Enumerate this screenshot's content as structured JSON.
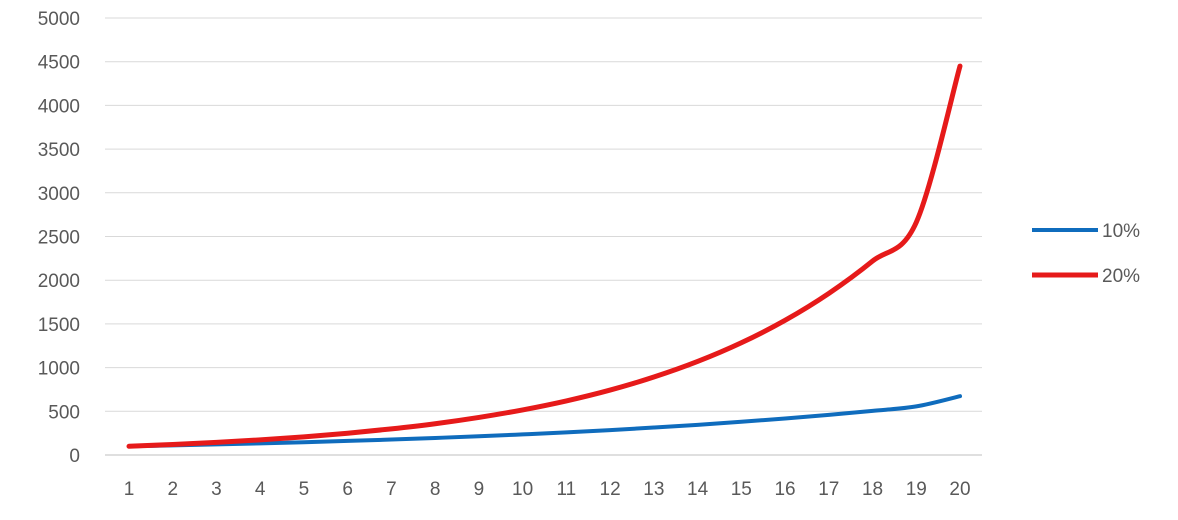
{
  "chart_data": {
    "type": "line",
    "title": "",
    "xlabel": "",
    "ylabel": "",
    "categories": [
      "1",
      "2",
      "3",
      "4",
      "5",
      "6",
      "7",
      "8",
      "9",
      "10",
      "11",
      "12",
      "13",
      "14",
      "15",
      "16",
      "17",
      "18",
      "19",
      "20"
    ],
    "ylim": [
      0,
      5000
    ],
    "yticks": [
      0,
      500,
      1000,
      1500,
      2000,
      2500,
      3000,
      3500,
      4000,
      4500,
      5000
    ],
    "grid": "horizontal",
    "legend_position": "right",
    "series": [
      {
        "name": "10%",
        "color": "#0f6cbd",
        "values": [
          100,
          110,
          121,
          133,
          146,
          161,
          177,
          195,
          214,
          236,
          259,
          285,
          314,
          345,
          380,
          418,
          459,
          505,
          556,
          673
        ]
      },
      {
        "name": "20%",
        "color": "#e61a1a",
        "values": [
          100,
          120,
          144,
          173,
          207,
          249,
          299,
          358,
          430,
          516,
          619,
          743,
          892,
          1070,
          1284,
          1541,
          1849,
          2219,
          2662,
          4450
        ]
      }
    ]
  }
}
